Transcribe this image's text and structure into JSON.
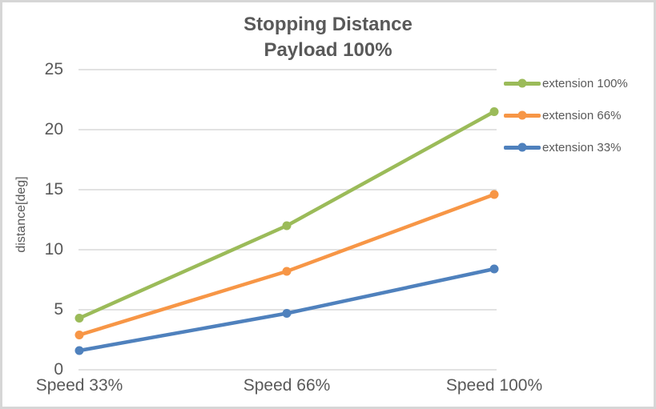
{
  "chart_data": {
    "type": "line",
    "title": "Stopping Distance",
    "subtitle": "Payload 100%",
    "categories": [
      "Speed 33%",
      "Speed 66%",
      "Speed 100%"
    ],
    "series": [
      {
        "name": "extension 100%",
        "color": "#9BBB59",
        "values": [
          4.3,
          12.0,
          21.5
        ]
      },
      {
        "name": "extension 66%",
        "color": "#F79646",
        "values": [
          2.9,
          8.2,
          14.6
        ]
      },
      {
        "name": "extension 33%",
        "color": "#4F81BD",
        "values": [
          1.6,
          4.7,
          8.4
        ]
      }
    ],
    "xlabel": "",
    "ylabel": "distance[deg]",
    "ylim": [
      0,
      25
    ],
    "yticks": [
      0,
      5,
      10,
      15,
      20,
      25
    ],
    "grid": true,
    "legend_position": "right",
    "marker": "circle",
    "colors": {
      "text": "#595959",
      "gridline": "#D9D9D9",
      "border": "#D6D6D6",
      "background": "#FFFFFF"
    }
  }
}
